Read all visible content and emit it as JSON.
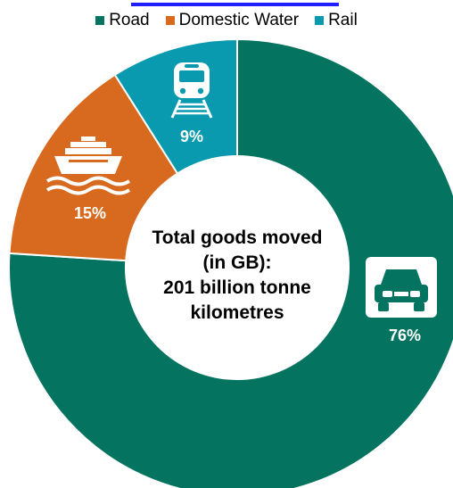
{
  "chart_data": {
    "type": "pie",
    "variant": "donut",
    "categories": [
      "Road",
      "Domestic Water",
      "Rail"
    ],
    "values": [
      76,
      15,
      9
    ],
    "data_labels": [
      "76%",
      "15%",
      "9%"
    ],
    "colors": [
      "#04735f",
      "#d86a1f",
      "#0a9ab0"
    ],
    "icons": [
      "truck-icon",
      "ship-icon",
      "train-icon"
    ],
    "legend_position": "top",
    "center_text": [
      "Total goods moved",
      "(in GB):",
      "201 billion tonne",
      "kilometres"
    ]
  }
}
